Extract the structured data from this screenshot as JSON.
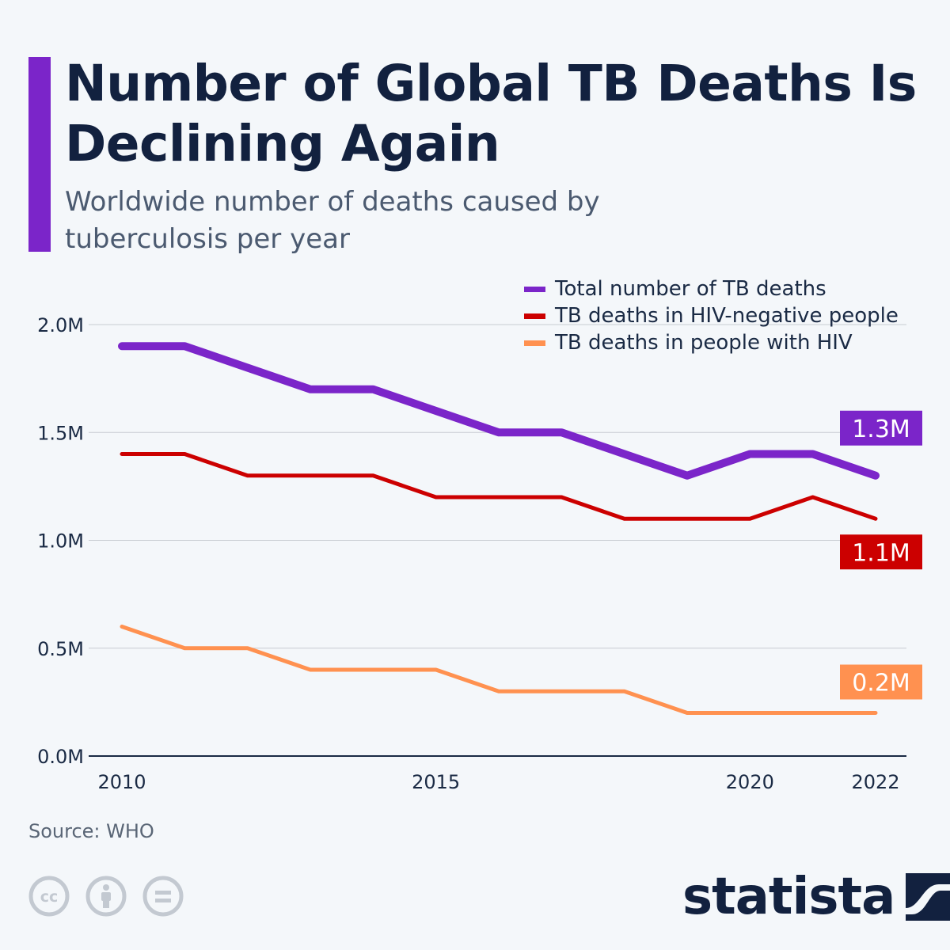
{
  "header": {
    "title": "Number of Global TB Deaths Is Declining Again",
    "subtitle": "Worldwide number of deaths caused by tuberculosis per year"
  },
  "colors": {
    "accent": "#7b25c9",
    "total": "#7b25c9",
    "hiv_negative": "#cc0000",
    "with_hiv": "#ff9150",
    "grid": "#c8ccd2",
    "axis": "#1a2a44"
  },
  "legend": {
    "items": [
      {
        "label": "Total number of TB deaths",
        "color": "#7b25c9"
      },
      {
        "label": "TB deaths in HIV-negative people",
        "color": "#cc0000"
      },
      {
        "label": "TB deaths in people with HIV",
        "color": "#ff9150"
      }
    ]
  },
  "chart_data": {
    "type": "line",
    "x": [
      2010,
      2011,
      2012,
      2013,
      2014,
      2015,
      2016,
      2017,
      2018,
      2019,
      2020,
      2021,
      2022
    ],
    "x_tick_labels": [
      "2010",
      "2015",
      "2020",
      "2022"
    ],
    "x_ticks": [
      2010,
      2015,
      2020,
      2022
    ],
    "y_tick_labels": [
      "0.0M",
      "0.5M",
      "1.0M",
      "1.5M",
      "2.0M"
    ],
    "y_ticks": [
      0,
      0.5,
      1.0,
      1.5,
      2.0
    ],
    "ylim": [
      0,
      2.0
    ],
    "grid": true,
    "legend_position": "top-right",
    "series": [
      {
        "name": "Total number of TB deaths",
        "color": "#7b25c9",
        "values": [
          1.9,
          1.9,
          1.8,
          1.7,
          1.7,
          1.6,
          1.5,
          1.5,
          1.4,
          1.3,
          1.4,
          1.4,
          1.3
        ],
        "end_label": "1.3M"
      },
      {
        "name": "TB deaths in HIV-negative people",
        "color": "#cc0000",
        "values": [
          1.4,
          1.4,
          1.3,
          1.3,
          1.3,
          1.2,
          1.2,
          1.2,
          1.1,
          1.1,
          1.1,
          1.2,
          1.1
        ],
        "end_label": "1.1M"
      },
      {
        "name": "TB deaths in people with HIV",
        "color": "#ff9150",
        "values": [
          0.6,
          0.5,
          0.5,
          0.4,
          0.4,
          0.4,
          0.3,
          0.3,
          0.3,
          0.2,
          0.2,
          0.2,
          0.2
        ],
        "end_label": "0.2M"
      }
    ]
  },
  "footer": {
    "source": "Source: WHO",
    "brand": "statista",
    "license_icons": [
      "creative-commons-icon",
      "attribution-icon",
      "no-derivatives-icon"
    ]
  }
}
